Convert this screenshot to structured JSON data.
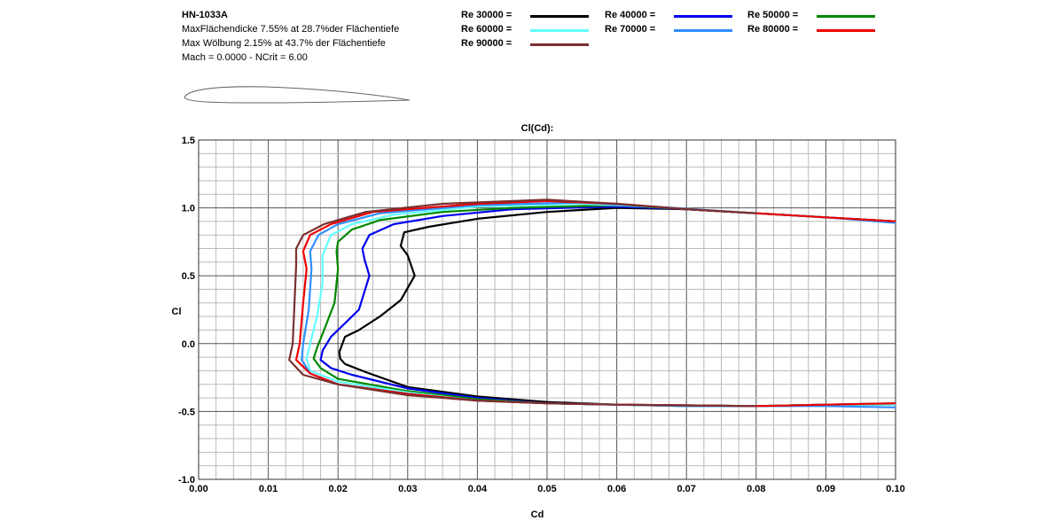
{
  "airfoil": {
    "name": "HN-1033A",
    "thickness_line": "MaxFlächendicke 7.55% at 28.7%der Flächentiefe",
    "camber_line": "Max Wölbung 2.15% at 43.7% der Flächentiefe",
    "mach_line": "Mach = 0.0000 - NCrit = 6.00"
  },
  "chart_data": {
    "type": "line",
    "title": "Cl(Cd):",
    "xlabel": "Cd",
    "ylabel": "Cl",
    "xlim": [
      0.0,
      0.1
    ],
    "ylim": [
      -1.0,
      1.5
    ],
    "grid": true,
    "legend_position": "top",
    "x_ticks": [
      "0.00",
      "0.01",
      "0.02",
      "0.03",
      "0.04",
      "0.05",
      "0.06",
      "0.07",
      "0.08",
      "0.09",
      "0.10"
    ],
    "y_ticks": [
      "-1.0",
      "-0.5",
      "0.0",
      "0.5",
      "1.0",
      "1.5"
    ],
    "series": [
      {
        "name": "Re 30000 =",
        "color": "#000000",
        "points": [
          [
            0.1,
            -0.44
          ],
          [
            0.09,
            -0.45
          ],
          [
            0.08,
            -0.46
          ],
          [
            0.07,
            -0.455
          ],
          [
            0.06,
            -0.45
          ],
          [
            0.05,
            -0.43
          ],
          [
            0.04,
            -0.39
          ],
          [
            0.03,
            -0.32
          ],
          [
            0.024,
            -0.21
          ],
          [
            0.021,
            -0.15
          ],
          [
            0.0203,
            -0.11
          ],
          [
            0.0202,
            -0.06
          ],
          [
            0.021,
            0.05
          ],
          [
            0.023,
            0.1
          ],
          [
            0.026,
            0.2
          ],
          [
            0.029,
            0.32
          ],
          [
            0.031,
            0.5
          ],
          [
            0.03,
            0.65
          ],
          [
            0.029,
            0.72
          ],
          [
            0.0295,
            0.82
          ],
          [
            0.033,
            0.86
          ],
          [
            0.04,
            0.92
          ],
          [
            0.05,
            0.97
          ],
          [
            0.06,
            1.0
          ],
          [
            0.07,
            0.99
          ],
          [
            0.08,
            0.96
          ],
          [
            0.09,
            0.93
          ],
          [
            0.1,
            0.9
          ]
        ]
      },
      {
        "name": "Re 40000 =",
        "color": "#0000ee",
        "points": [
          [
            0.1,
            -0.45
          ],
          [
            0.09,
            -0.45
          ],
          [
            0.08,
            -0.46
          ],
          [
            0.07,
            -0.46
          ],
          [
            0.06,
            -0.45
          ],
          [
            0.05,
            -0.44
          ],
          [
            0.04,
            -0.4
          ],
          [
            0.03,
            -0.33
          ],
          [
            0.022,
            -0.23
          ],
          [
            0.019,
            -0.18
          ],
          [
            0.0175,
            -0.12
          ],
          [
            0.0178,
            -0.05
          ],
          [
            0.019,
            0.05
          ],
          [
            0.021,
            0.15
          ],
          [
            0.023,
            0.25
          ],
          [
            0.0245,
            0.5
          ],
          [
            0.0238,
            0.62
          ],
          [
            0.0235,
            0.7
          ],
          [
            0.0245,
            0.8
          ],
          [
            0.028,
            0.88
          ],
          [
            0.035,
            0.94
          ],
          [
            0.045,
            0.99
          ],
          [
            0.06,
            1.01
          ],
          [
            0.07,
            0.99
          ],
          [
            0.08,
            0.96
          ],
          [
            0.09,
            0.93
          ],
          [
            0.1,
            0.9
          ]
        ]
      },
      {
        "name": "Re 50000 =",
        "color": "#008800",
        "points": [
          [
            0.1,
            -0.45
          ],
          [
            0.09,
            -0.45
          ],
          [
            0.08,
            -0.46
          ],
          [
            0.07,
            -0.46
          ],
          [
            0.06,
            -0.45
          ],
          [
            0.05,
            -0.44
          ],
          [
            0.04,
            -0.41
          ],
          [
            0.03,
            -0.35
          ],
          [
            0.02,
            -0.26
          ],
          [
            0.0175,
            -0.18
          ],
          [
            0.0165,
            -0.11
          ],
          [
            0.017,
            -0.03
          ],
          [
            0.018,
            0.1
          ],
          [
            0.0195,
            0.3
          ],
          [
            0.02,
            0.55
          ],
          [
            0.0198,
            0.68
          ],
          [
            0.02,
            0.75
          ],
          [
            0.022,
            0.84
          ],
          [
            0.026,
            0.91
          ],
          [
            0.035,
            0.97
          ],
          [
            0.045,
            1.0
          ],
          [
            0.06,
            1.02
          ],
          [
            0.07,
            0.99
          ],
          [
            0.08,
            0.96
          ],
          [
            0.09,
            0.93
          ],
          [
            0.1,
            0.9
          ]
        ]
      },
      {
        "name": "Re 60000 =",
        "color": "#66ffff",
        "points": [
          [
            0.1,
            -0.45
          ],
          [
            0.09,
            -0.45
          ],
          [
            0.08,
            -0.46
          ],
          [
            0.07,
            -0.46
          ],
          [
            0.06,
            -0.45
          ],
          [
            0.05,
            -0.44
          ],
          [
            0.04,
            -0.42
          ],
          [
            0.03,
            -0.36
          ],
          [
            0.02,
            -0.28
          ],
          [
            0.016,
            -0.2
          ],
          [
            0.0155,
            -0.11
          ],
          [
            0.016,
            0.0
          ],
          [
            0.017,
            0.2
          ],
          [
            0.0178,
            0.45
          ],
          [
            0.0178,
            0.65
          ],
          [
            0.019,
            0.8
          ],
          [
            0.022,
            0.88
          ],
          [
            0.028,
            0.95
          ],
          [
            0.04,
            1.01
          ],
          [
            0.055,
            1.03
          ],
          [
            0.065,
            1.01
          ],
          [
            0.08,
            0.96
          ],
          [
            0.09,
            0.93
          ],
          [
            0.1,
            0.89
          ]
        ]
      },
      {
        "name": "Re 70000 =",
        "color": "#2f8fff",
        "points": [
          [
            0.1,
            -0.47
          ],
          [
            0.09,
            -0.46
          ],
          [
            0.08,
            -0.46
          ],
          [
            0.07,
            -0.46
          ],
          [
            0.06,
            -0.45
          ],
          [
            0.05,
            -0.44
          ],
          [
            0.04,
            -0.42
          ],
          [
            0.03,
            -0.37
          ],
          [
            0.02,
            -0.3
          ],
          [
            0.016,
            -0.22
          ],
          [
            0.0148,
            -0.12
          ],
          [
            0.015,
            0.0
          ],
          [
            0.0158,
            0.25
          ],
          [
            0.0162,
            0.55
          ],
          [
            0.016,
            0.68
          ],
          [
            0.0172,
            0.8
          ],
          [
            0.02,
            0.88
          ],
          [
            0.026,
            0.96
          ],
          [
            0.04,
            1.02
          ],
          [
            0.055,
            1.04
          ],
          [
            0.065,
            1.01
          ],
          [
            0.08,
            0.96
          ],
          [
            0.09,
            0.93
          ],
          [
            0.1,
            0.89
          ]
        ]
      },
      {
        "name": "Re 80000 =",
        "color": "#ee0000",
        "points": [
          [
            0.1,
            -0.44
          ],
          [
            0.09,
            -0.45
          ],
          [
            0.08,
            -0.46
          ],
          [
            0.07,
            -0.455
          ],
          [
            0.06,
            -0.45
          ],
          [
            0.05,
            -0.44
          ],
          [
            0.04,
            -0.42
          ],
          [
            0.03,
            -0.37
          ],
          [
            0.02,
            -0.3
          ],
          [
            0.016,
            -0.22
          ],
          [
            0.014,
            -0.12
          ],
          [
            0.0145,
            0.0
          ],
          [
            0.015,
            0.3
          ],
          [
            0.0155,
            0.55
          ],
          [
            0.015,
            0.68
          ],
          [
            0.016,
            0.8
          ],
          [
            0.019,
            0.88
          ],
          [
            0.025,
            0.97
          ],
          [
            0.04,
            1.03
          ],
          [
            0.05,
            1.05
          ],
          [
            0.06,
            1.03
          ],
          [
            0.07,
            0.99
          ],
          [
            0.08,
            0.96
          ],
          [
            0.09,
            0.93
          ],
          [
            0.1,
            0.9
          ]
        ]
      },
      {
        "name": "Re 90000 =",
        "color": "#7a3030",
        "points": [
          [
            0.08,
            -0.46
          ],
          [
            0.07,
            -0.455
          ],
          [
            0.06,
            -0.45
          ],
          [
            0.05,
            -0.44
          ],
          [
            0.04,
            -0.42
          ],
          [
            0.03,
            -0.38
          ],
          [
            0.02,
            -0.3
          ],
          [
            0.015,
            -0.23
          ],
          [
            0.013,
            -0.12
          ],
          [
            0.0135,
            0.0
          ],
          [
            0.0138,
            0.35
          ],
          [
            0.014,
            0.58
          ],
          [
            0.014,
            0.7
          ],
          [
            0.015,
            0.8
          ],
          [
            0.018,
            0.88
          ],
          [
            0.024,
            0.97
          ],
          [
            0.035,
            1.03
          ],
          [
            0.05,
            1.06
          ],
          [
            0.06,
            1.03
          ],
          [
            0.07,
            0.99
          ],
          [
            0.08,
            0.96
          ]
        ]
      }
    ]
  }
}
